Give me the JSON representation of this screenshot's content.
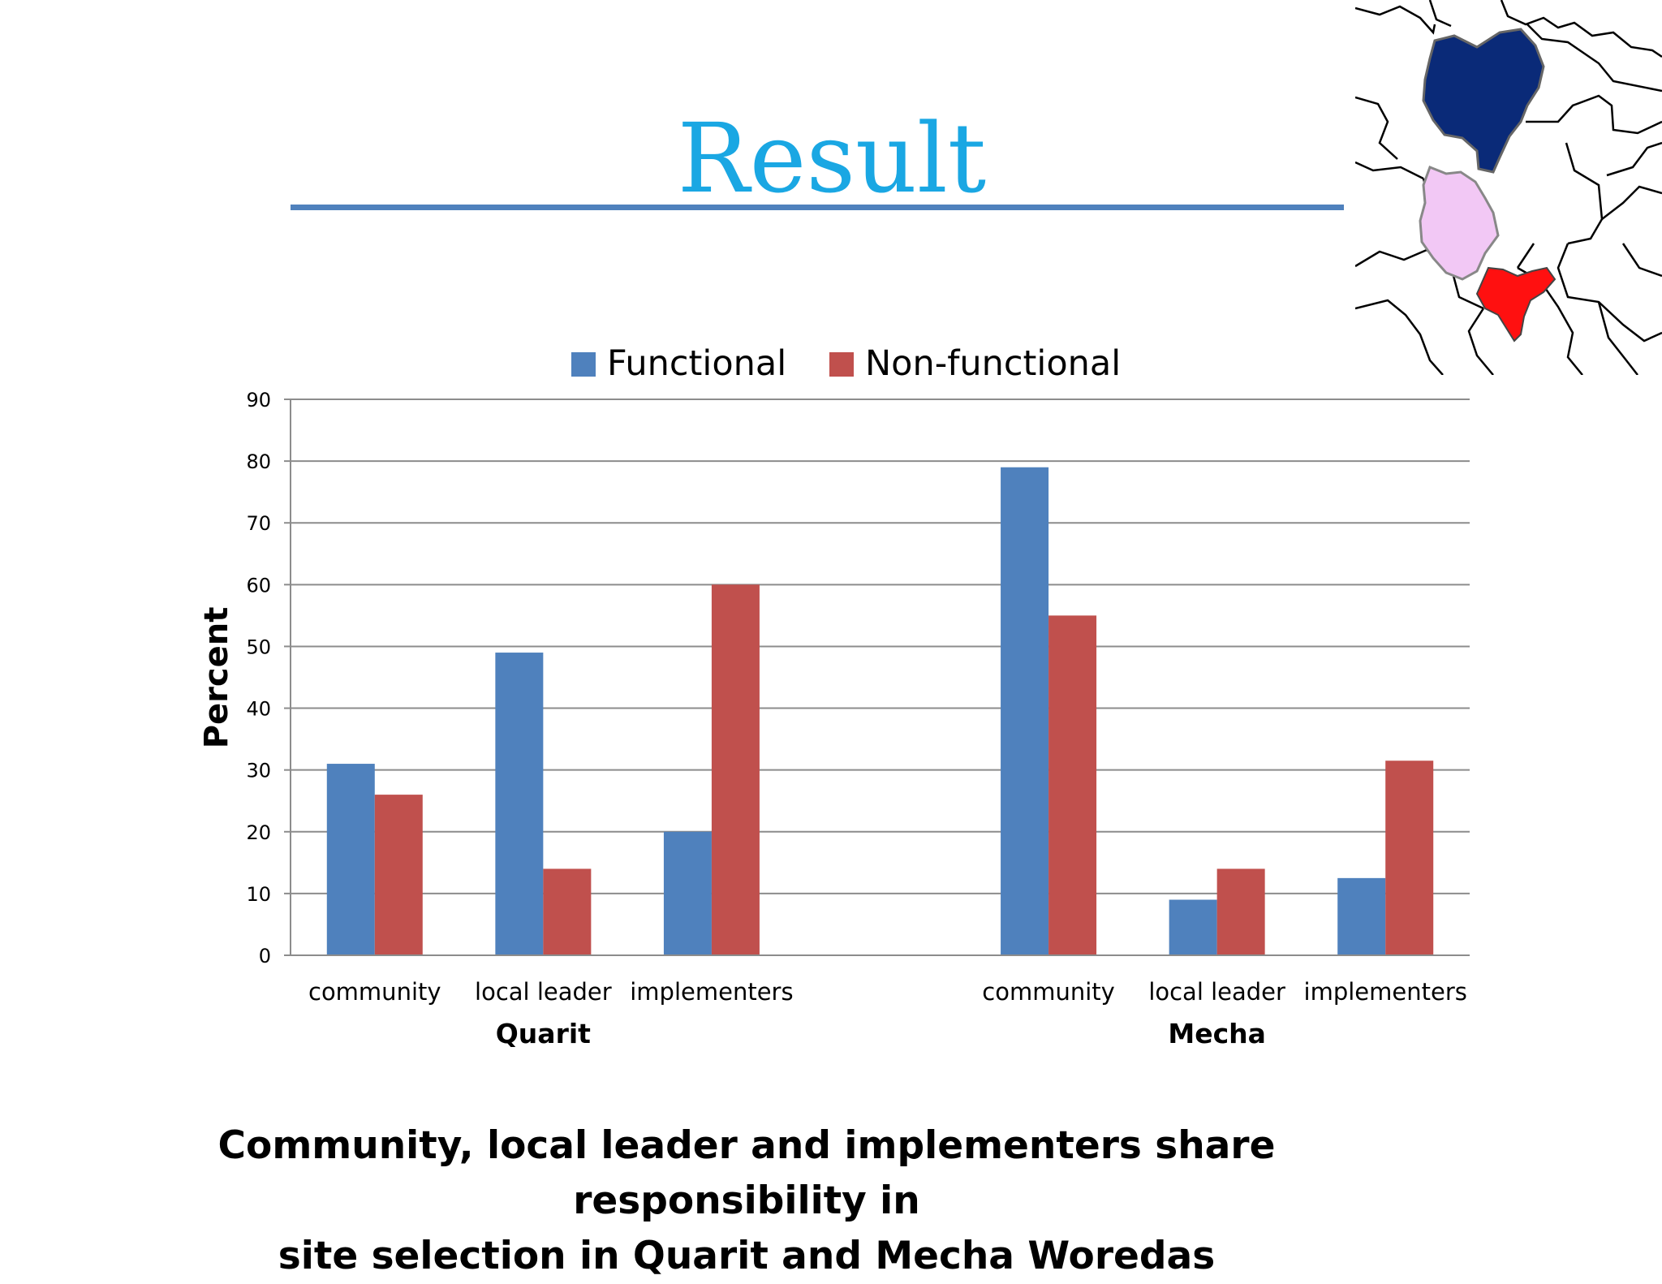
{
  "slide": {
    "title": "Result",
    "caption_lines": [
      "Community, local leader and implementers share responsibility in",
      "site selection in Quarit and Mecha Woredas"
    ]
  },
  "map": {
    "colors": {
      "top_region": "#0a2a78",
      "middle_region": "#f2c8f5",
      "bottom_region": "#ff1010",
      "outline": "#000000"
    }
  },
  "chart_data": {
    "type": "bar",
    "ylabel": "Percent",
    "ylim": [
      0,
      90
    ],
    "yticks": [
      0,
      10,
      20,
      30,
      40,
      50,
      60,
      70,
      80,
      90
    ],
    "grid": true,
    "legend_position": "top-center",
    "groups": [
      {
        "name": "Quarit",
        "categories": [
          "community",
          "local leader",
          "implementers"
        ]
      },
      {
        "name": "Mecha",
        "categories": [
          "community",
          "local leader",
          "implementers"
        ]
      }
    ],
    "series": [
      {
        "name": "Functional",
        "color": "#4f81bd",
        "values": [
          31,
          49,
          20,
          79,
          9,
          12.5
        ]
      },
      {
        "name": "Non-functional",
        "color": "#c0504d",
        "values": [
          26,
          14,
          60,
          55,
          14,
          31.5
        ]
      }
    ]
  }
}
